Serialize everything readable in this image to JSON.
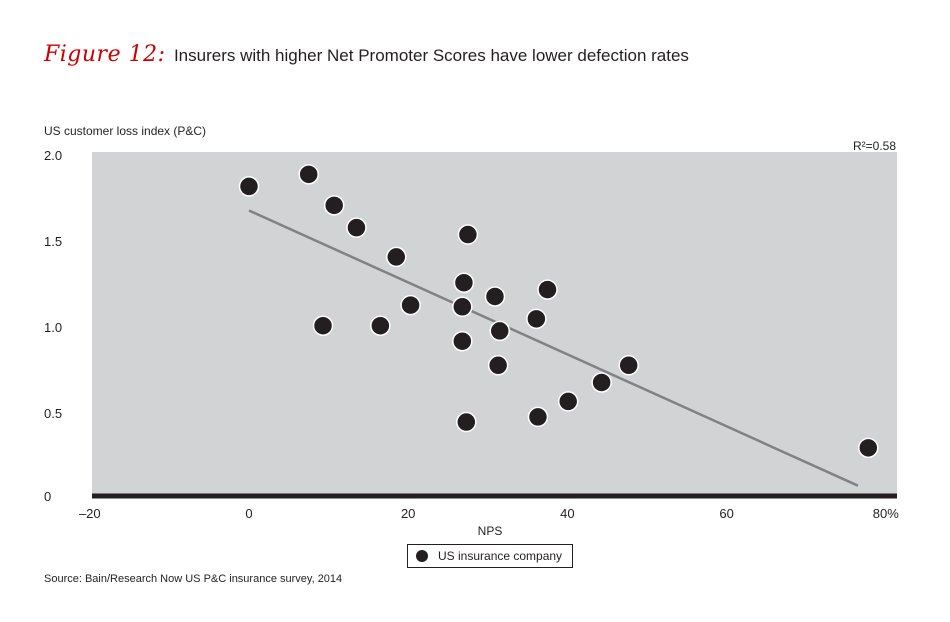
{
  "figure": {
    "label": "Figure 12:",
    "title": "Insurers with higher Net Promoter Scores have lower defection rates"
  },
  "source": "Source: Bain/Research Now US P&C insurance survey, 2014",
  "colors": {
    "plot_bg": "#d2d3d5",
    "point": "#231f20",
    "trend": "#808285",
    "axis": "#231f20",
    "title_accent": "#cc0000"
  },
  "chart_data": {
    "type": "scatter",
    "title": "Insurers with higher Net Promoter Scores have lower defection rates",
    "xlabel": "NPS",
    "ylabel": "US customer loss index (P&C)",
    "xlim": [
      -20,
      80
    ],
    "ylim": [
      0,
      2.0
    ],
    "x_ticks": [
      {
        "value": -20,
        "label": "–20"
      },
      {
        "value": 0,
        "label": "0"
      },
      {
        "value": 20,
        "label": "20"
      },
      {
        "value": 40,
        "label": "40"
      },
      {
        "value": 60,
        "label": "60"
      },
      {
        "value": 80,
        "label": "80%"
      }
    ],
    "y_ticks": [
      {
        "value": 0,
        "label": "0"
      },
      {
        "value": 0.5,
        "label": "0.5"
      },
      {
        "value": 1.0,
        "label": "1.0"
      },
      {
        "value": 1.5,
        "label": "1.5"
      },
      {
        "value": 2.0,
        "label": "2.0"
      }
    ],
    "annotation": "R²=0.58",
    "series": [
      {
        "name": "US insurance company",
        "points": [
          {
            "x": 0,
            "y": 1.8
          },
          {
            "x": 7.5,
            "y": 1.87
          },
          {
            "x": 10.7,
            "y": 1.69
          },
          {
            "x": 13.5,
            "y": 1.56
          },
          {
            "x": 18.5,
            "y": 1.39
          },
          {
            "x": 9.3,
            "y": 0.99
          },
          {
            "x": 16.5,
            "y": 0.99
          },
          {
            "x": 20.3,
            "y": 1.11
          },
          {
            "x": 27.5,
            "y": 1.52
          },
          {
            "x": 27,
            "y": 1.24
          },
          {
            "x": 26.8,
            "y": 1.1
          },
          {
            "x": 26.8,
            "y": 0.9
          },
          {
            "x": 30.9,
            "y": 1.16
          },
          {
            "x": 31.5,
            "y": 0.96
          },
          {
            "x": 31.3,
            "y": 0.76
          },
          {
            "x": 36.1,
            "y": 1.03
          },
          {
            "x": 37.5,
            "y": 1.2
          },
          {
            "x": 27.3,
            "y": 0.43
          },
          {
            "x": 36.3,
            "y": 0.46
          },
          {
            "x": 40.1,
            "y": 0.55
          },
          {
            "x": 44.3,
            "y": 0.66
          },
          {
            "x": 47.7,
            "y": 0.76
          },
          {
            "x": 77.8,
            "y": 0.28
          }
        ]
      }
    ],
    "trendline": {
      "x": [
        0,
        76.5
      ],
      "y": [
        1.66,
        0.06
      ]
    },
    "legend": {
      "position": "bottom-center",
      "label": "US insurance company"
    }
  }
}
